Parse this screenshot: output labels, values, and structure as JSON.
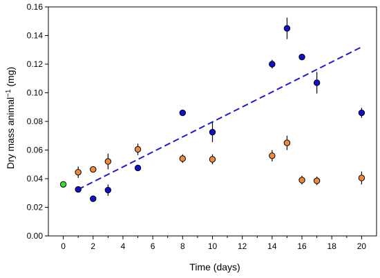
{
  "chart_data": {
    "type": "scatter",
    "xlabel": "Time (days)",
    "ylabel_main": "Dry mass animal",
    "ylabel_sup": "−1",
    "ylabel_unit": " (mg)",
    "xlim": [
      -1,
      21
    ],
    "ylim": [
      0,
      0.16
    ],
    "xticks": [
      0,
      2,
      4,
      6,
      8,
      10,
      12,
      14,
      16,
      18,
      20
    ],
    "xtick_labels": [
      "0",
      "2",
      "4",
      "6",
      "8",
      "10",
      "12",
      "14",
      "16",
      "18",
      "20"
    ],
    "yticks": [
      0,
      0.02,
      0.04,
      0.06,
      0.08,
      0.1,
      0.12,
      0.14,
      0.16
    ],
    "ytick_labels": [
      "0.00",
      "0.02",
      "0.04",
      "0.06",
      "0.08",
      "0.10",
      "0.12",
      "0.14",
      "0.16"
    ],
    "grid": false,
    "series": [
      {
        "color": "#1010cc",
        "points": [
          {
            "x": 1,
            "y": 0.0325,
            "err": 0.0015
          },
          {
            "x": 2,
            "y": 0.026,
            "err": 0.0012
          },
          {
            "x": 3,
            "y": 0.032,
            "err": 0.004
          },
          {
            "x": 5,
            "y": 0.0475,
            "err": 0.001
          },
          {
            "x": 8,
            "y": 0.086,
            "err": 0.0015
          },
          {
            "x": 10,
            "y": 0.0725,
            "err": 0.007
          },
          {
            "x": 14,
            "y": 0.12,
            "err": 0.003
          },
          {
            "x": 15,
            "y": 0.145,
            "err": 0.0075
          },
          {
            "x": 16,
            "y": 0.125,
            "err": 0.002
          },
          {
            "x": 17,
            "y": 0.107,
            "err": 0.0075
          },
          {
            "x": 20,
            "y": 0.086,
            "err": 0.0035
          }
        ]
      },
      {
        "color": "#f08a3a",
        "points": [
          {
            "x": 1,
            "y": 0.0445,
            "err": 0.004
          },
          {
            "x": 2,
            "y": 0.0465,
            "err": 0.0015
          },
          {
            "x": 3,
            "y": 0.052,
            "err": 0.0055
          },
          {
            "x": 5,
            "y": 0.0605,
            "err": 0.004
          },
          {
            "x": 8,
            "y": 0.054,
            "err": 0.003
          },
          {
            "x": 10,
            "y": 0.0535,
            "err": 0.0035
          },
          {
            "x": 14,
            "y": 0.056,
            "err": 0.004
          },
          {
            "x": 15,
            "y": 0.065,
            "err": 0.005
          },
          {
            "x": 16,
            "y": 0.039,
            "err": 0.003
          },
          {
            "x": 17,
            "y": 0.0385,
            "err": 0.003
          },
          {
            "x": 20,
            "y": 0.0405,
            "err": 0.0045
          }
        ]
      },
      {
        "color": "#33dd33",
        "points": [
          {
            "x": 0,
            "y": 0.036,
            "err": 0
          }
        ]
      }
    ],
    "trendline": {
      "color": "#1a1ad6",
      "style": "dashed",
      "x": [
        1,
        20
      ],
      "y": [
        0.0325,
        0.132
      ]
    }
  }
}
